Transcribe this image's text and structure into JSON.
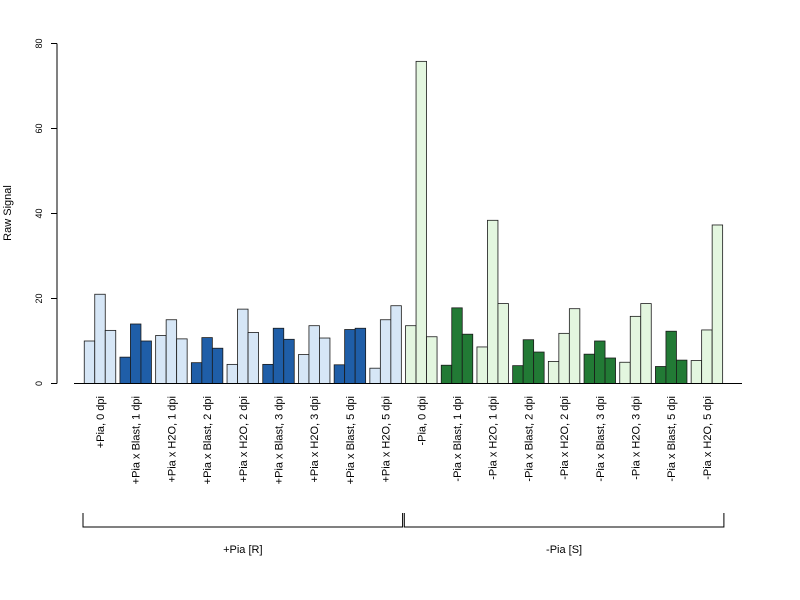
{
  "chart_data": {
    "type": "bar",
    "ylabel": "Raw Signal",
    "ylim": [
      0,
      80
    ],
    "yticks": [
      0,
      20,
      40,
      60,
      80
    ],
    "categories": [
      "+Pia, 0 dpi",
      "+Pia x Blast, 1 dpi",
      "+Pia x H2O, 1 dpi",
      "+Pia x Blast, 2 dpi",
      "+Pia x H2O, 2 dpi",
      "+Pia x Blast, 3 dpi",
      "+Pia x H2O, 3 dpi",
      "+Pia x Blast, 5 dpi",
      "+Pia x H2O, 5 dpi",
      "-Pia, 0 dpi",
      "-Pia x Blast, 1 dpi",
      "-Pia x H2O, 1 dpi",
      "-Pia x Blast, 2 dpi",
      "-Pia x H2O, 2 dpi",
      "-Pia x Blast, 3 dpi",
      "-Pia x H2O, 3 dpi",
      "-Pia x Blast, 5 dpi",
      "-Pia x H2O, 5 dpi"
    ],
    "replicates": [
      [
        10.0,
        21.0,
        12.5
      ],
      [
        6.2,
        14.0,
        10.0
      ],
      [
        11.3,
        15.0,
        10.5
      ],
      [
        4.9,
        10.8,
        8.3
      ],
      [
        4.5,
        17.5,
        12.0
      ],
      [
        4.5,
        13.0,
        10.4
      ],
      [
        6.8,
        13.6,
        10.7
      ],
      [
        4.4,
        12.7,
        13.0
      ],
      [
        3.6,
        15.0,
        18.3
      ],
      [
        13.6,
        75.8,
        11.0
      ],
      [
        4.3,
        17.8,
        11.6
      ],
      [
        8.6,
        38.4,
        18.8
      ],
      [
        4.2,
        10.3,
        7.4
      ],
      [
        5.2,
        11.8,
        17.6
      ],
      [
        6.9,
        10.0,
        6.0
      ],
      [
        5.0,
        15.8,
        18.8
      ],
      [
        4.0,
        12.3,
        5.5
      ],
      [
        5.4,
        12.6,
        37.3
      ]
    ],
    "bar_colors": [
      "#d6e6f6",
      "#1f5ea8",
      "#d6e6f6",
      "#1f5ea8",
      "#d6e6f6",
      "#1f5ea8",
      "#d6e6f6",
      "#1f5ea8",
      "#d6e6f6",
      "#e3f6df",
      "#227a35",
      "#e3f6df",
      "#227a35",
      "#e3f6df",
      "#227a35",
      "#e3f6df",
      "#227a35",
      "#e3f6df"
    ],
    "groups": [
      {
        "label": "+Pia [R]",
        "first": 0,
        "last": 8
      },
      {
        "label": "-Pia [S]",
        "first": 9,
        "last": 17
      }
    ],
    "grid": false,
    "legend": "none"
  }
}
